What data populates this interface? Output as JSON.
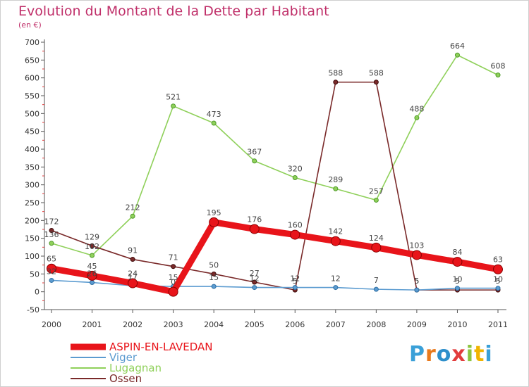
{
  "title": "Evolution du Montant de la Dette par Habitant",
  "unit_label": "(en €)",
  "logo_text": "Proxiti",
  "logo_colors": [
    "#3aa0d8",
    "#e87a1e",
    "#2e8fcb",
    "#e23c3c",
    "#8bc53f",
    "#f0b400",
    "#3aa0d8"
  ],
  "chart_data": {
    "type": "line",
    "title": "Evolution du Montant de la Dette par Habitant",
    "ylabel": "(en €)",
    "xlabel": "",
    "x": [
      "2000",
      "2001",
      "2002",
      "2003",
      "2004",
      "2005",
      "2006",
      "2007",
      "2008",
      "2009",
      "2010",
      "2011"
    ],
    "ylim": [
      -50,
      700
    ],
    "yticks": [
      -50,
      0,
      50,
      100,
      150,
      200,
      250,
      300,
      350,
      400,
      450,
      500,
      550,
      600,
      650,
      700
    ],
    "grid": false,
    "legend_position": "bottom-left",
    "series": [
      {
        "name": "ASPIN-EN-LAVEDAN",
        "color": "#e8141a",
        "values": [
          65,
          45,
          24,
          0,
          195,
          176,
          160,
          142,
          124,
          103,
          84,
          63
        ],
        "labels": [
          "65",
          "45",
          "24",
          "0",
          "195",
          "176",
          "160",
          "142",
          "124",
          "103",
          "84",
          "63"
        ]
      },
      {
        "name": "Viger",
        "color": "#5b9bd0",
        "values": [
          32,
          26,
          17,
          15,
          15,
          12,
          12,
          12,
          7,
          5,
          10,
          10
        ],
        "labels": [
          "32",
          "26",
          "17",
          "15",
          "15",
          "12",
          "12",
          "12",
          "7",
          "5",
          "10",
          "10"
        ]
      },
      {
        "name": "Lugagnan",
        "color": "#8fd05a",
        "values": [
          136,
          102,
          212,
          521,
          473,
          367,
          320,
          289,
          257,
          488,
          664,
          608
        ],
        "labels": [
          "136",
          "102",
          "212",
          "521",
          "473",
          "367",
          "320",
          "289",
          "257",
          "488",
          "664",
          "608"
        ]
      },
      {
        "name": "Ossen",
        "color": "#7a2a2a",
        "values": [
          172,
          129,
          91,
          71,
          50,
          27,
          5,
          588,
          588,
          5,
          5,
          5
        ],
        "labels": [
          "172",
          "129",
          "91",
          "71",
          "50",
          "27",
          "5",
          "588",
          "588",
          "5",
          "5",
          "5"
        ]
      }
    ]
  }
}
